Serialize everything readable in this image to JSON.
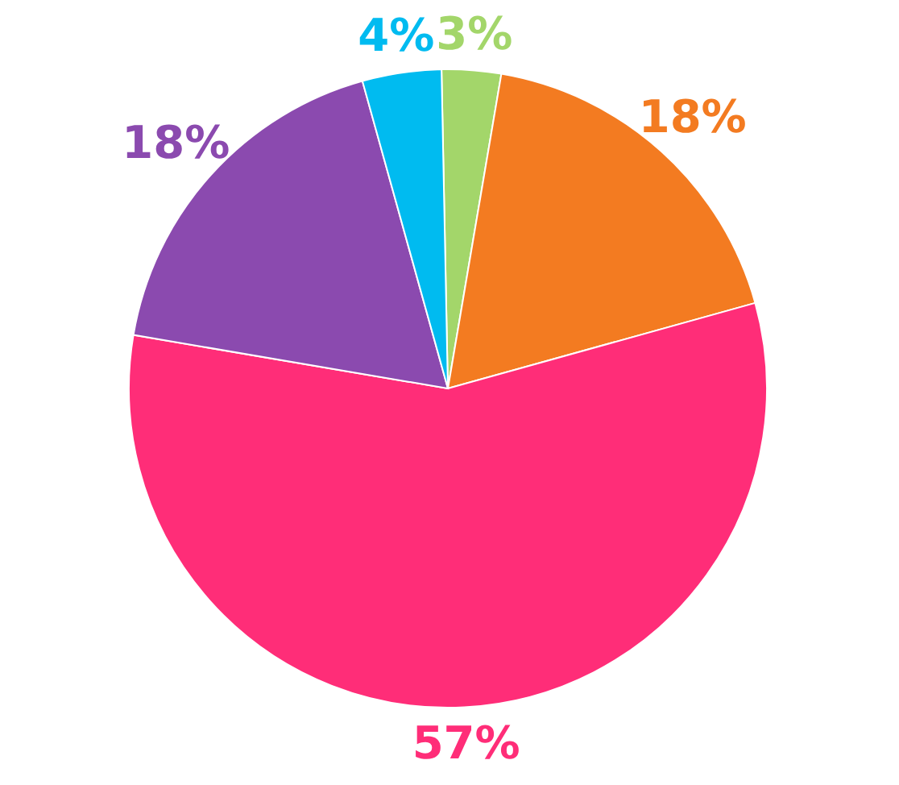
{
  "chart_data": {
    "type": "pie",
    "categories": [
      null,
      null,
      null,
      null,
      null
    ],
    "values": [
      3,
      18,
      57,
      18,
      4
    ],
    "colors": [
      "#a3d66a",
      "#f37b21",
      "#ff2d78",
      "#8b4aaf",
      "#00bbf0"
    ],
    "value_labels": [
      "3%",
      "18%",
      "57%",
      "18%",
      "4%"
    ]
  }
}
